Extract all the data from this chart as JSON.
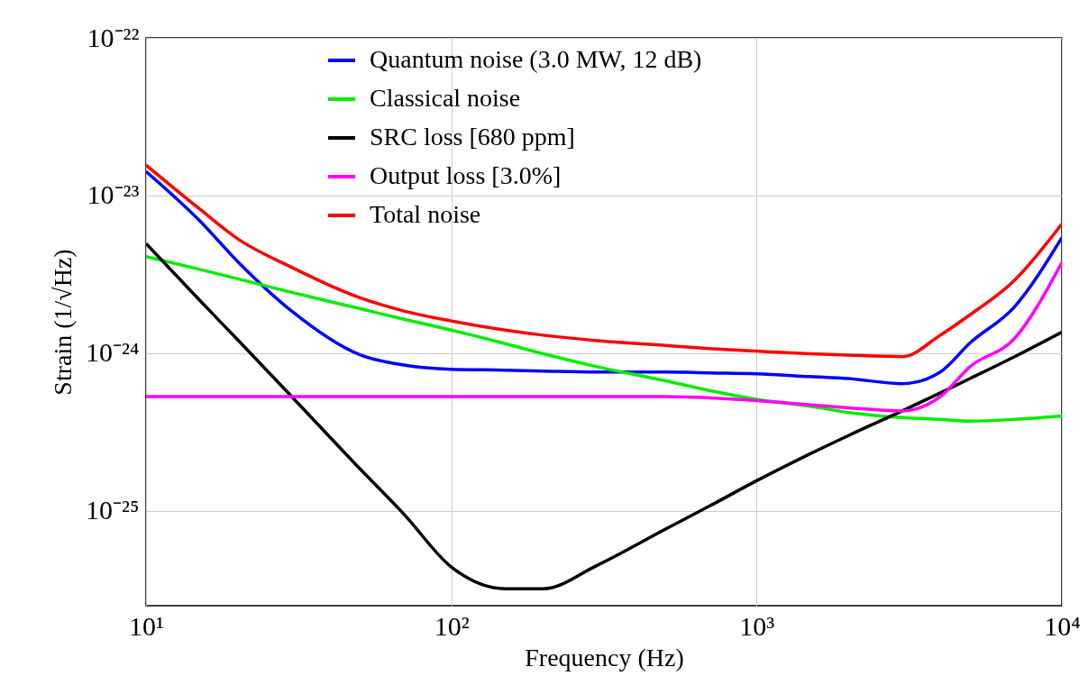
{
  "chart_data": {
    "type": "line",
    "xlabel": "Frequency (Hz)",
    "ylabel": "Strain  (1/√Hz)",
    "log": "xy",
    "grid": true,
    "legend": "top",
    "line_style": "solid",
    "marker": "none",
    "xlim": [
      10,
      10000
    ],
    "ylim": [
      2.5e-26,
      1e-22
    ],
    "xticks": [
      {
        "value": 10,
        "label": "10¹"
      },
      {
        "value": 100,
        "label": "10²"
      },
      {
        "value": 1000,
        "label": "10³"
      },
      {
        "value": 10000,
        "label": "10⁴"
      }
    ],
    "yticks": [
      {
        "value": 1e-25,
        "label": "10⁻²⁵"
      },
      {
        "value": 1e-24,
        "label": "10⁻²⁴"
      },
      {
        "value": 1e-23,
        "label": "10⁻²³"
      },
      {
        "value": 1e-22,
        "label": "10⁻²²"
      }
    ],
    "x": [
      10,
      15,
      20,
      30,
      50,
      70,
      100,
      150,
      200,
      300,
      500,
      700,
      1000,
      1500,
      2000,
      3000,
      4000,
      5000,
      7000,
      10000
    ],
    "series": [
      {
        "name": "Quantum noise (3.0 MW, 12 dB)",
        "color": "#0000ff",
        "values": [
          1.42e-23,
          6.9e-24,
          3.8e-24,
          1.85e-24,
          9.8e-25,
          8.4e-25,
          7.9e-25,
          7.8e-25,
          7.7e-25,
          7.6e-25,
          7.6e-25,
          7.5e-25,
          7.4e-25,
          7.1e-25,
          6.9e-25,
          6.4e-25,
          7.6e-25,
          1.16e-24,
          1.97e-24,
          5.4e-24
        ]
      },
      {
        "name": "Classical noise",
        "color": "#00ee00",
        "values": [
          4.1e-24,
          3.4e-24,
          2.96e-24,
          2.43e-24,
          1.92e-24,
          1.64e-24,
          1.4e-24,
          1.15e-24,
          9.9e-25,
          8.2e-25,
          6.7e-25,
          5.8e-25,
          5.1e-25,
          4.6e-25,
          4.2e-25,
          3.9e-25,
          3.8e-25,
          3.7e-25,
          3.8e-25,
          4e-25
        ]
      },
      {
        "name": "SRC loss [680 ppm]",
        "color": "#000000",
        "values": [
          4.95e-24,
          2.16e-24,
          1.21e-24,
          5.3e-25,
          1.86e-25,
          9.5e-26,
          4.4e-26,
          3.2e-26,
          3.2e-26,
          4.5e-26,
          7.6e-26,
          1.07e-25,
          1.55e-25,
          2.3e-25,
          3e-25,
          4.3e-25,
          5.6e-25,
          6.9e-25,
          9.5e-25,
          1.36e-24
        ]
      },
      {
        "name": "Output loss [3.0%]",
        "color": "#ff00ff",
        "values": [
          5.3e-25,
          5.3e-25,
          5.3e-25,
          5.3e-25,
          5.3e-25,
          5.3e-25,
          5.3e-25,
          5.3e-25,
          5.3e-25,
          5.3e-25,
          5.3e-25,
          5.2e-25,
          5e-25,
          4.7e-25,
          4.5e-25,
          4.3e-25,
          5.3e-25,
          8.2e-25,
          1.24e-24,
          3.76e-24
        ]
      },
      {
        "name": "Total noise",
        "color": "#ff0000",
        "values": [
          1.56e-23,
          8.2e-24,
          5.3e-24,
          3.5e-24,
          2.25e-24,
          1.85e-24,
          1.6e-24,
          1.4e-24,
          1.3e-24,
          1.2e-24,
          1.12e-24,
          1.07e-24,
          1.03e-24,
          9.9e-25,
          9.7e-25,
          9.5e-25,
          1.3e-24,
          1.75e-24,
          2.9e-24,
          6.6e-24
        ]
      }
    ]
  }
}
